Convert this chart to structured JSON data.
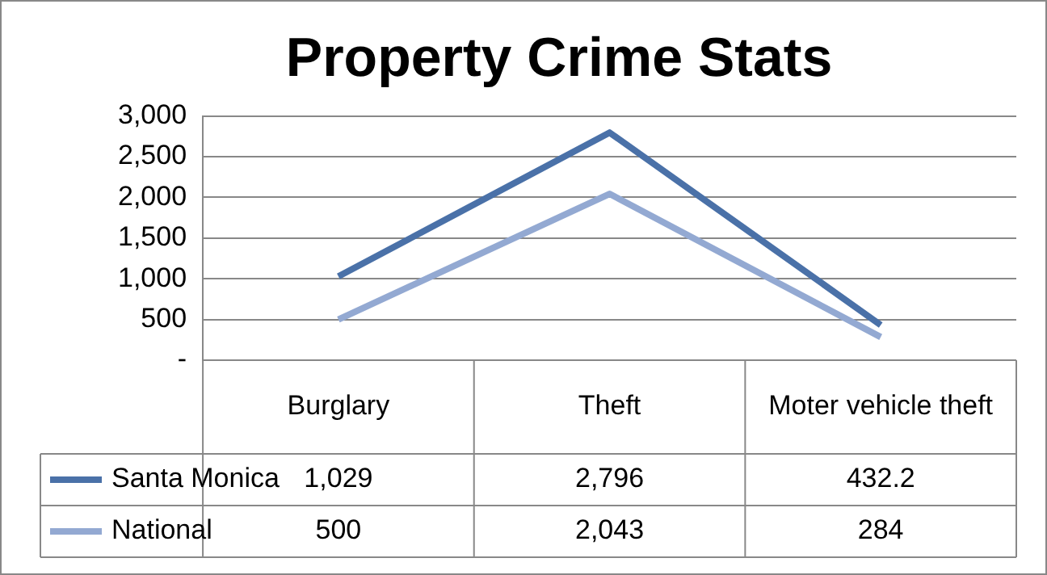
{
  "chart_data": {
    "type": "line",
    "title": "Property Crime Stats",
    "categories": [
      "Burglary",
      "Theft",
      "Moter vehicle theft"
    ],
    "series": [
      {
        "name": "Santa Monica",
        "color": "#4a71a8",
        "values": [
          1029,
          2796,
          432.2
        ],
        "value_labels": [
          "1,029",
          "2,796",
          "432.2"
        ]
      },
      {
        "name": "National",
        "color": "#93a9d2",
        "values": [
          500,
          2043,
          284
        ],
        "value_labels": [
          "500",
          "2,043",
          "284"
        ]
      }
    ],
    "ylim": [
      0,
      3000
    ],
    "yticks": [
      {
        "value": 0,
        "label": "-"
      },
      {
        "value": 500,
        "label": "500"
      },
      {
        "value": 1000,
        "label": "1,000"
      },
      {
        "value": 1500,
        "label": "1,500"
      },
      {
        "value": 2000,
        "label": "2,000"
      },
      {
        "value": 2500,
        "label": "2,500"
      },
      {
        "value": 3000,
        "label": "3,000"
      }
    ],
    "grid": "y",
    "legend": "bottom",
    "marker": "none",
    "line_style": "solid"
  }
}
